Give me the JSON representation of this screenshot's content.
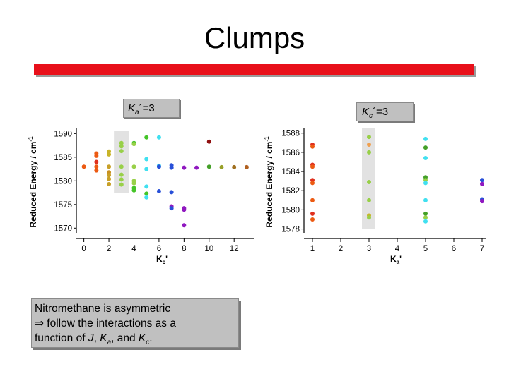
{
  "slide": {
    "title": "Clumps",
    "label_left": {
      "base": "K",
      "sub": "a",
      "rest": "´=3"
    },
    "label_right": {
      "base": "K",
      "sub": "c",
      "rest": "´=3"
    },
    "note": {
      "line1": "Nitromethane is asymmetric",
      "arrow": "⇒",
      "line2": " follow the interactions as a",
      "line3a": "function of ",
      "J": "J",
      "comma1": ", ",
      "Ka_base": "K",
      "Ka_sub": "a",
      "comma2": ", and ",
      "Kc_base": "K",
      "Kc_sub": "c",
      "period": "."
    },
    "colors": {
      "accent_bar": "#e8101a",
      "box_fill": "#c0c0c0",
      "highlight": "#e2e2e2"
    }
  },
  "chart_data": [
    {
      "type": "scatter",
      "title": "",
      "xlabel_base": "K",
      "xlabel_sub": "c",
      "xlabel_rest": "'",
      "ylabel": "Reduced Energy / cm",
      "ylabel_sup": "-1",
      "xlim": [
        -0.6,
        13.4
      ],
      "ylim": [
        1569,
        1590.5
      ],
      "xticks": [
        0,
        2,
        4,
        6,
        8,
        10,
        12
      ],
      "yticks": [
        1570,
        1575,
        1580,
        1585,
        1590
      ],
      "highlight_x": [
        2.4,
        3.6
      ],
      "points": [
        {
          "x": 0,
          "y": 1583,
          "c": "#ec5a12"
        },
        {
          "x": 1,
          "y": 1585.8,
          "c": "#ec5a12"
        },
        {
          "x": 1,
          "y": 1585.3,
          "c": "#ec5a12"
        },
        {
          "x": 1,
          "y": 1584,
          "c": "#e0301e"
        },
        {
          "x": 1,
          "y": 1583,
          "c": "#ec5a12"
        },
        {
          "x": 1,
          "y": 1582.2,
          "c": "#ec5a12"
        },
        {
          "x": 2,
          "y": 1586.2,
          "c": "#c8b428"
        },
        {
          "x": 2,
          "y": 1585.6,
          "c": "#c8b428"
        },
        {
          "x": 2,
          "y": 1583,
          "c": "#c8a028"
        },
        {
          "x": 2,
          "y": 1581.8,
          "c": "#c89020"
        },
        {
          "x": 2,
          "y": 1581.2,
          "c": "#c8a028"
        },
        {
          "x": 2,
          "y": 1580.4,
          "c": "#c8a028"
        },
        {
          "x": 2,
          "y": 1579.3,
          "c": "#c8a028"
        },
        {
          "x": 3,
          "y": 1588,
          "c": "#98d048"
        },
        {
          "x": 3,
          "y": 1587.3,
          "c": "#98d048"
        },
        {
          "x": 3,
          "y": 1586.3,
          "c": "#98d048"
        },
        {
          "x": 3,
          "y": 1583,
          "c": "#98d048"
        },
        {
          "x": 3,
          "y": 1581.3,
          "c": "#98d048"
        },
        {
          "x": 3,
          "y": 1580.3,
          "c": "#98d048"
        },
        {
          "x": 3,
          "y": 1579.2,
          "c": "#98d048"
        },
        {
          "x": 4,
          "y": 1588,
          "c": "#44c428"
        },
        {
          "x": 4,
          "y": 1587.8,
          "c": "#98d048"
        },
        {
          "x": 4,
          "y": 1583,
          "c": "#98d048"
        },
        {
          "x": 4,
          "y": 1580,
          "c": "#98d048"
        },
        {
          "x": 4,
          "y": 1579.5,
          "c": "#98d048"
        },
        {
          "x": 4,
          "y": 1578.5,
          "c": "#44c428"
        },
        {
          "x": 4,
          "y": 1578,
          "c": "#44c428"
        },
        {
          "x": 5,
          "y": 1589.2,
          "c": "#44c428"
        },
        {
          "x": 5,
          "y": 1584.6,
          "c": "#40e0f0"
        },
        {
          "x": 5,
          "y": 1582.5,
          "c": "#40e0f0"
        },
        {
          "x": 5,
          "y": 1578.8,
          "c": "#40e0f0"
        },
        {
          "x": 5,
          "y": 1577.3,
          "c": "#44c428"
        },
        {
          "x": 5,
          "y": 1576.5,
          "c": "#40e0f0"
        },
        {
          "x": 6,
          "y": 1589.2,
          "c": "#40e0f0"
        },
        {
          "x": 6,
          "y": 1583.2,
          "c": "#40e0f0"
        },
        {
          "x": 6,
          "y": 1583,
          "c": "#2850d8"
        },
        {
          "x": 6,
          "y": 1577.8,
          "c": "#2850d8"
        },
        {
          "x": 7,
          "y": 1583.3,
          "c": "#2850d8"
        },
        {
          "x": 7,
          "y": 1582.8,
          "c": "#2850d8"
        },
        {
          "x": 7,
          "y": 1577.6,
          "c": "#2850d8"
        },
        {
          "x": 7,
          "y": 1574.6,
          "c": "#9018c0"
        },
        {
          "x": 7,
          "y": 1574.2,
          "c": "#2850d8"
        },
        {
          "x": 8,
          "y": 1582.8,
          "c": "#9018c0"
        },
        {
          "x": 8,
          "y": 1574.2,
          "c": "#9018c0"
        },
        {
          "x": 8,
          "y": 1573.9,
          "c": "#9018c0"
        },
        {
          "x": 8,
          "y": 1570.6,
          "c": "#9018c0"
        },
        {
          "x": 9,
          "y": 1582.8,
          "c": "#9018c0"
        },
        {
          "x": 10,
          "y": 1588.3,
          "c": "#901010"
        },
        {
          "x": 10,
          "y": 1583,
          "c": "#44a028"
        },
        {
          "x": 11,
          "y": 1582.9,
          "c": "#98a028"
        },
        {
          "x": 12,
          "y": 1582.9,
          "c": "#a07020"
        },
        {
          "x": 13,
          "y": 1582.9,
          "c": "#b06020"
        }
      ]
    },
    {
      "type": "scatter",
      "title": "",
      "xlabel_base": "K",
      "xlabel_sub": "a",
      "xlabel_rest": "'",
      "ylabel": "Reduced Energy / cm",
      "ylabel_sup": "-1",
      "xlim": [
        0.7,
        7.05
      ],
      "ylim": [
        1577.6,
        1588.2
      ],
      "xticks": [
        1,
        2,
        3,
        4,
        5,
        6,
        7
      ],
      "yticks": [
        1578,
        1580,
        1582,
        1584,
        1586,
        1588
      ],
      "highlight_x": [
        2.75,
        3.2
      ],
      "points": [
        {
          "x": 1,
          "y": 1586.8,
          "c": "#e0301e"
        },
        {
          "x": 1,
          "y": 1586.6,
          "c": "#ec5a12"
        },
        {
          "x": 1,
          "y": 1584.7,
          "c": "#e0301e"
        },
        {
          "x": 1,
          "y": 1584.5,
          "c": "#ec5a12"
        },
        {
          "x": 1,
          "y": 1583.1,
          "c": "#e0301e"
        },
        {
          "x": 1,
          "y": 1582.8,
          "c": "#ec5a12"
        },
        {
          "x": 1,
          "y": 1581,
          "c": "#ec5a12"
        },
        {
          "x": 1,
          "y": 1579.6,
          "c": "#e0301e"
        },
        {
          "x": 1,
          "y": 1579,
          "c": "#ec5a12"
        },
        {
          "x": 3,
          "y": 1587.6,
          "c": "#98d048"
        },
        {
          "x": 3,
          "y": 1586.8,
          "c": "#f0a050"
        },
        {
          "x": 3,
          "y": 1586,
          "c": "#98d048"
        },
        {
          "x": 3,
          "y": 1582.9,
          "c": "#98d048"
        },
        {
          "x": 3,
          "y": 1581,
          "c": "#98d048"
        },
        {
          "x": 3,
          "y": 1579.4,
          "c": "#c8b428"
        },
        {
          "x": 3,
          "y": 1579.2,
          "c": "#98d048"
        },
        {
          "x": 5,
          "y": 1587.4,
          "c": "#40e0f0"
        },
        {
          "x": 5,
          "y": 1586.5,
          "c": "#44a028"
        },
        {
          "x": 5,
          "y": 1585.4,
          "c": "#40e0f0"
        },
        {
          "x": 5,
          "y": 1583.4,
          "c": "#44a028"
        },
        {
          "x": 5,
          "y": 1583.1,
          "c": "#98d048"
        },
        {
          "x": 5,
          "y": 1582.8,
          "c": "#40e0f0"
        },
        {
          "x": 5,
          "y": 1581,
          "c": "#40e0f0"
        },
        {
          "x": 5,
          "y": 1579.6,
          "c": "#44a028"
        },
        {
          "x": 5,
          "y": 1579.2,
          "c": "#98d048"
        },
        {
          "x": 5,
          "y": 1578.8,
          "c": "#40e0f0"
        },
        {
          "x": 7,
          "y": 1583.1,
          "c": "#2850d8"
        },
        {
          "x": 7,
          "y": 1582.7,
          "c": "#9018c0"
        },
        {
          "x": 7,
          "y": 1581.1,
          "c": "#2850d8"
        },
        {
          "x": 7,
          "y": 1580.9,
          "c": "#9018c0"
        }
      ]
    }
  ]
}
